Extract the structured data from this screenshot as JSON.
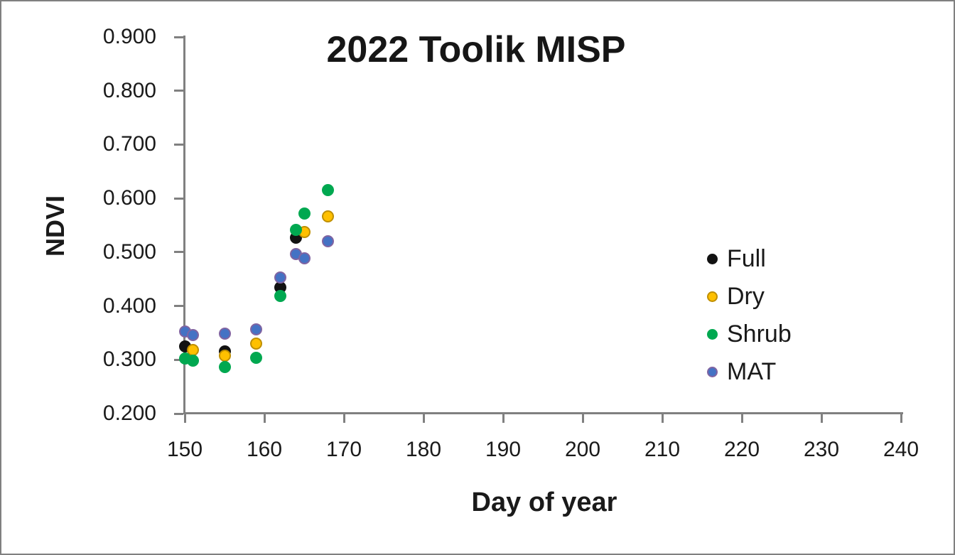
{
  "chart_data": {
    "type": "scatter",
    "title": "2022 Toolik MISP",
    "xlabel": "Day of year",
    "ylabel": "NDVI",
    "xlim": [
      150,
      240
    ],
    "ylim": [
      0.2,
      0.9
    ],
    "grid": false,
    "legend_position": "right-middle",
    "axis_color": "#808080",
    "text_color": "#1a1a1a",
    "x_ticks": [
      {
        "value": 150,
        "label": "150"
      },
      {
        "value": 160,
        "label": "160"
      },
      {
        "value": 170,
        "label": "170"
      },
      {
        "value": 180,
        "label": "180"
      },
      {
        "value": 190,
        "label": "190"
      },
      {
        "value": 200,
        "label": "200"
      },
      {
        "value": 210,
        "label": "210"
      },
      {
        "value": 220,
        "label": "220"
      },
      {
        "value": 230,
        "label": "230"
      },
      {
        "value": 240,
        "label": "240"
      }
    ],
    "y_ticks": [
      {
        "value": 0.9,
        "label": "0.900"
      },
      {
        "value": 0.8,
        "label": "0.800"
      },
      {
        "value": 0.7,
        "label": "0.700"
      },
      {
        "value": 0.6,
        "label": "0.600"
      },
      {
        "value": 0.5,
        "label": "0.500"
      },
      {
        "value": 0.4,
        "label": "0.400"
      },
      {
        "value": 0.3,
        "label": "0.300"
      },
      {
        "value": 0.2,
        "label": "0.200"
      }
    ],
    "series": [
      {
        "name": "Full",
        "color": "#121212",
        "border_color": "#121212",
        "points": [
          {
            "x": 150,
            "y": 0.325
          },
          {
            "x": 155,
            "y": 0.315
          },
          {
            "x": 162,
            "y": 0.435
          },
          {
            "x": 164,
            "y": 0.527
          }
        ]
      },
      {
        "name": "Dry",
        "color": "#FFC000",
        "border_color": "#BF8F00",
        "points": [
          {
            "x": 151,
            "y": 0.318
          },
          {
            "x": 155,
            "y": 0.307
          },
          {
            "x": 159,
            "y": 0.33
          },
          {
            "x": 165,
            "y": 0.538
          },
          {
            "x": 168,
            "y": 0.566
          }
        ]
      },
      {
        "name": "Shrub",
        "color": "#00A850",
        "border_color": "#00A850",
        "points": [
          {
            "x": 150,
            "y": 0.302
          },
          {
            "x": 151,
            "y": 0.298
          },
          {
            "x": 155,
            "y": 0.287
          },
          {
            "x": 159,
            "y": 0.304
          },
          {
            "x": 162,
            "y": 0.418
          },
          {
            "x": 164,
            "y": 0.541
          },
          {
            "x": 165,
            "y": 0.572
          },
          {
            "x": 168,
            "y": 0.615
          }
        ]
      },
      {
        "name": "MAT",
        "color": "#4472C4",
        "border_color": "#8064A2",
        "points": [
          {
            "x": 150,
            "y": 0.353
          },
          {
            "x": 151,
            "y": 0.346
          },
          {
            "x": 155,
            "y": 0.348
          },
          {
            "x": 159,
            "y": 0.356
          },
          {
            "x": 162,
            "y": 0.453
          },
          {
            "x": 164,
            "y": 0.496
          },
          {
            "x": 165,
            "y": 0.488
          },
          {
            "x": 168,
            "y": 0.52
          }
        ]
      }
    ]
  }
}
